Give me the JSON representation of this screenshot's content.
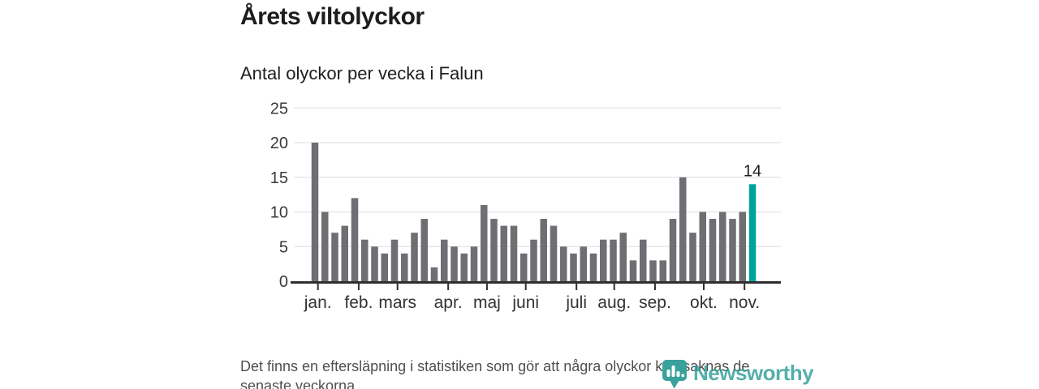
{
  "header": {
    "title": "Årets viltolyckor",
    "subtitle": "Antal olyckor per vecka i Falun"
  },
  "chart_data": {
    "type": "bar",
    "title": "Årets viltolyckor",
    "subtitle": "Antal olyckor per vecka i Falun",
    "x_unit": "vecka",
    "weeks": {
      "first": 1,
      "last": 45
    },
    "values": [
      20,
      10,
      7,
      8,
      12,
      6,
      5,
      4,
      6,
      4,
      7,
      9,
      2,
      6,
      5,
      4,
      5,
      11,
      9,
      8,
      8,
      4,
      6,
      9,
      8,
      5,
      4,
      5,
      4,
      6,
      6,
      7,
      3,
      6,
      3,
      3,
      9,
      15,
      7,
      10,
      9,
      10,
      9,
      10,
      14
    ],
    "highlight_index": 44,
    "highlight_label": "14",
    "y_ticks": [
      0,
      5,
      10,
      15,
      20,
      25
    ],
    "ylim": [
      0,
      25
    ],
    "grid": true,
    "months": [
      {
        "label": "jan.",
        "week": 1.3
      },
      {
        "label": "feb.",
        "week": 5.4
      },
      {
        "label": "mars",
        "week": 9.3
      },
      {
        "label": "apr.",
        "week": 14.4
      },
      {
        "label": "maj",
        "week": 18.3
      },
      {
        "label": "juni",
        "week": 22.2
      },
      {
        "label": "juli",
        "week": 27.3
      },
      {
        "label": "aug.",
        "week": 31.1
      },
      {
        "label": "sep.",
        "week": 35.2
      },
      {
        "label": "okt.",
        "week": 40.1
      },
      {
        "label": "nov.",
        "week": 44.2
      }
    ],
    "colors": {
      "bar": "#6e6e73",
      "highlight": "#00a39b",
      "grid": "#e8e8e8",
      "axis": "#2f2f2f",
      "tick_text": "#3a3a3a"
    }
  },
  "footer": {
    "note": "Det finns en eftersläpning i statistiken som gör att några olyckor kan saknas de senaste veckorna."
  },
  "branding": {
    "wordmark": "Newsworthy",
    "logo_color": "#3aa29c"
  }
}
